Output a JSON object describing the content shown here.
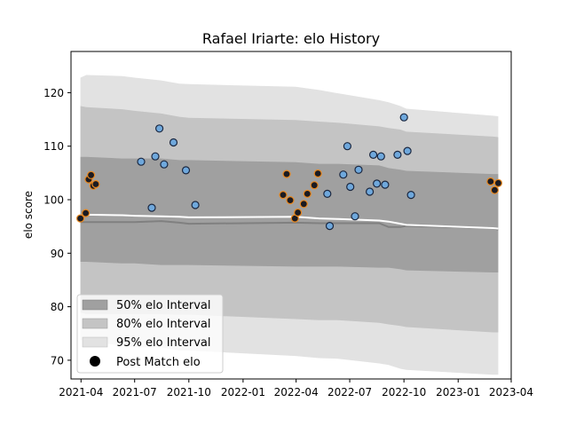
{
  "chart_data": {
    "type": "scatter",
    "title": "Rafael Iriarte: elo History",
    "xlabel": "",
    "ylabel": "elo score",
    "xlim": [
      "2021-03-15",
      "2023-04-01"
    ],
    "ylim": [
      66.5,
      127.7
    ],
    "x_ticks": [
      "2021-04",
      "2021-07",
      "2021-10",
      "2022-01",
      "2022-04",
      "2022-07",
      "2022-10",
      "2023-01",
      "2023-04"
    ],
    "y_ticks": [
      70,
      80,
      90,
      100,
      110,
      120
    ],
    "grid": false,
    "legend": {
      "placement": "lower-left",
      "entries": [
        "50% elo Interval",
        "80% elo Interval",
        "95% elo Interval",
        "Post Match elo"
      ]
    },
    "colors": {
      "band_50": "#a0a0a0",
      "band_80": "#c4c4c4",
      "band_95": "#e2e2e2",
      "mean_line": "#ffffff",
      "median_line": "#808080",
      "point_blue": "#6fa8dc",
      "point_orange": "#e8871e"
    },
    "intervals": {
      "dates": [
        "2021-03-31",
        "2021-04-10",
        "2021-06-10",
        "2021-07-01",
        "2021-08-15",
        "2021-09-15",
        "2021-10-01",
        "2022-03-31",
        "2022-05-10",
        "2022-06-10",
        "2022-08-20",
        "2022-09-05",
        "2022-09-25",
        "2022-10-05",
        "2023-03-01",
        "2023-03-10"
      ],
      "p95_upper": [
        122.8,
        123.3,
        123.1,
        122.8,
        122.3,
        121.7,
        121.6,
        121.1,
        120.5,
        119.9,
        118.6,
        118.2,
        117.5,
        117.0,
        115.7,
        115.6
      ],
      "p80_upper": [
        117.5,
        117.3,
        116.9,
        116.6,
        116.1,
        115.5,
        115.3,
        114.9,
        114.6,
        114.4,
        113.7,
        113.4,
        113.1,
        112.7,
        111.8,
        111.7
      ],
      "p50_upper": [
        108.0,
        108.0,
        107.7,
        107.7,
        107.7,
        107.4,
        107.4,
        107.0,
        106.7,
        106.7,
        106.4,
        105.9,
        105.6,
        105.4,
        104.8,
        104.8
      ],
      "p50_lower": [
        88.4,
        88.4,
        88.1,
        88.1,
        87.8,
        87.8,
        87.8,
        87.5,
        87.5,
        87.5,
        87.3,
        87.3,
        87.0,
        86.8,
        86.4,
        86.4
      ],
      "p80_lower": [
        78.9,
        78.6,
        78.6,
        78.6,
        78.6,
        78.5,
        78.5,
        77.7,
        77.5,
        77.5,
        77.0,
        76.7,
        76.4,
        76.2,
        75.2,
        75.2
      ],
      "p95_lower": [
        73.8,
        73.6,
        72.7,
        72.4,
        72.4,
        71.8,
        71.8,
        70.8,
        70.4,
        70.3,
        69.4,
        69.1,
        68.4,
        68.2,
        67.3,
        67.3
      ],
      "mean": [
        97.0,
        97.2,
        97.1,
        97.0,
        96.9,
        96.8,
        96.7,
        96.8,
        96.5,
        96.4,
        96.1,
        95.9,
        95.5,
        95.3,
        94.7,
        94.6
      ],
      "median": [
        95.8,
        95.8,
        95.8,
        95.8,
        96.0,
        95.7,
        95.5,
        95.7,
        95.6,
        95.6,
        95.6,
        94.9,
        94.9,
        95.1,
        94.7,
        94.4
      ]
    },
    "points": [
      {
        "date": "2021-03-31",
        "elo": 96.5,
        "edge": "orange"
      },
      {
        "date": "2021-04-09",
        "elo": 97.5,
        "edge": "orange"
      },
      {
        "date": "2021-04-14",
        "elo": 103.8,
        "edge": "orange"
      },
      {
        "date": "2021-04-18",
        "elo": 104.6,
        "edge": "orange"
      },
      {
        "date": "2021-04-22",
        "elo": 102.6,
        "edge": "orange"
      },
      {
        "date": "2021-04-26",
        "elo": 102.9,
        "edge": "orange"
      },
      {
        "date": "2021-07-12",
        "elo": 107.1,
        "edge": "dark"
      },
      {
        "date": "2021-07-30",
        "elo": 98.5,
        "edge": "dark"
      },
      {
        "date": "2021-08-05",
        "elo": 108.1,
        "edge": "dark"
      },
      {
        "date": "2021-08-12",
        "elo": 113.3,
        "edge": "dark"
      },
      {
        "date": "2021-08-20",
        "elo": 106.6,
        "edge": "dark"
      },
      {
        "date": "2021-09-05",
        "elo": 110.7,
        "edge": "dark"
      },
      {
        "date": "2021-09-26",
        "elo": 105.5,
        "edge": "dark"
      },
      {
        "date": "2021-10-12",
        "elo": 99.0,
        "edge": "dark"
      },
      {
        "date": "2022-03-10",
        "elo": 100.9,
        "edge": "orange"
      },
      {
        "date": "2022-03-16",
        "elo": 104.8,
        "edge": "orange"
      },
      {
        "date": "2022-03-22",
        "elo": 99.9,
        "edge": "orange"
      },
      {
        "date": "2022-03-30",
        "elo": 96.5,
        "edge": "orange"
      },
      {
        "date": "2022-04-04",
        "elo": 97.6,
        "edge": "orange"
      },
      {
        "date": "2022-04-14",
        "elo": 99.2,
        "edge": "orange"
      },
      {
        "date": "2022-04-20",
        "elo": 101.1,
        "edge": "orange"
      },
      {
        "date": "2022-05-02",
        "elo": 102.7,
        "edge": "orange"
      },
      {
        "date": "2022-05-08",
        "elo": 104.9,
        "edge": "orange"
      },
      {
        "date": "2022-05-24",
        "elo": 101.1,
        "edge": "dark"
      },
      {
        "date": "2022-05-28",
        "elo": 95.1,
        "edge": "dark"
      },
      {
        "date": "2022-06-20",
        "elo": 104.7,
        "edge": "dark"
      },
      {
        "date": "2022-06-27",
        "elo": 110.0,
        "edge": "dark"
      },
      {
        "date": "2022-07-02",
        "elo": 102.4,
        "edge": "dark"
      },
      {
        "date": "2022-07-10",
        "elo": 96.9,
        "edge": "dark"
      },
      {
        "date": "2022-07-16",
        "elo": 105.6,
        "edge": "dark"
      },
      {
        "date": "2022-08-04",
        "elo": 101.5,
        "edge": "dark"
      },
      {
        "date": "2022-08-10",
        "elo": 108.4,
        "edge": "dark"
      },
      {
        "date": "2022-08-16",
        "elo": 103.0,
        "edge": "dark"
      },
      {
        "date": "2022-08-23",
        "elo": 108.1,
        "edge": "dark"
      },
      {
        "date": "2022-08-30",
        "elo": 102.8,
        "edge": "dark"
      },
      {
        "date": "2022-09-20",
        "elo": 108.4,
        "edge": "dark"
      },
      {
        "date": "2022-10-01",
        "elo": 115.4,
        "edge": "dark"
      },
      {
        "date": "2022-10-07",
        "elo": 109.1,
        "edge": "dark"
      },
      {
        "date": "2022-10-13",
        "elo": 100.9,
        "edge": "dark"
      },
      {
        "date": "2023-02-25",
        "elo": 103.4,
        "edge": "orange"
      },
      {
        "date": "2023-03-04",
        "elo": 101.8,
        "edge": "orange"
      },
      {
        "date": "2023-03-10",
        "elo": 103.1,
        "edge": "orange"
      }
    ]
  }
}
